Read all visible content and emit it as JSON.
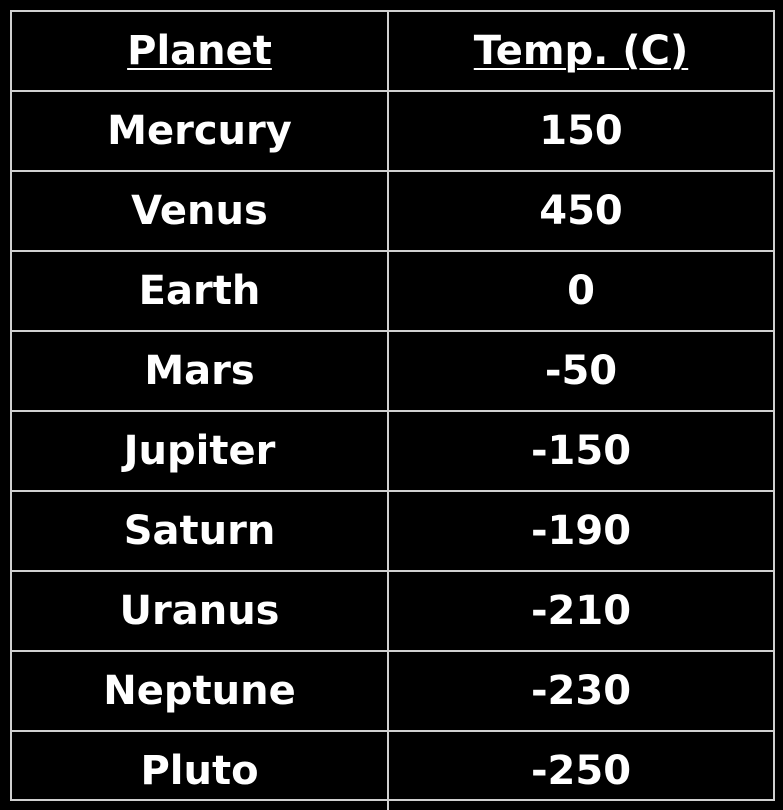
{
  "table": {
    "columns": [
      "Planet",
      "Temp. (C)"
    ],
    "rows": [
      {
        "planet": "Mercury",
        "temp": "150"
      },
      {
        "planet": "Venus",
        "temp": "450"
      },
      {
        "planet": "Earth",
        "temp": "0"
      },
      {
        "planet": "Mars",
        "temp": "-50"
      },
      {
        "planet": "Jupiter",
        "temp": "-150"
      },
      {
        "planet": "Saturn",
        "temp": "-190"
      },
      {
        "planet": "Uranus",
        "temp": "-210"
      },
      {
        "planet": "Neptune",
        "temp": "-230"
      },
      {
        "planet": "Pluto",
        "temp": "-250"
      }
    ]
  },
  "colors": {
    "background": "#000000",
    "text": "#ffffff",
    "grid": "#d0d0d0"
  }
}
